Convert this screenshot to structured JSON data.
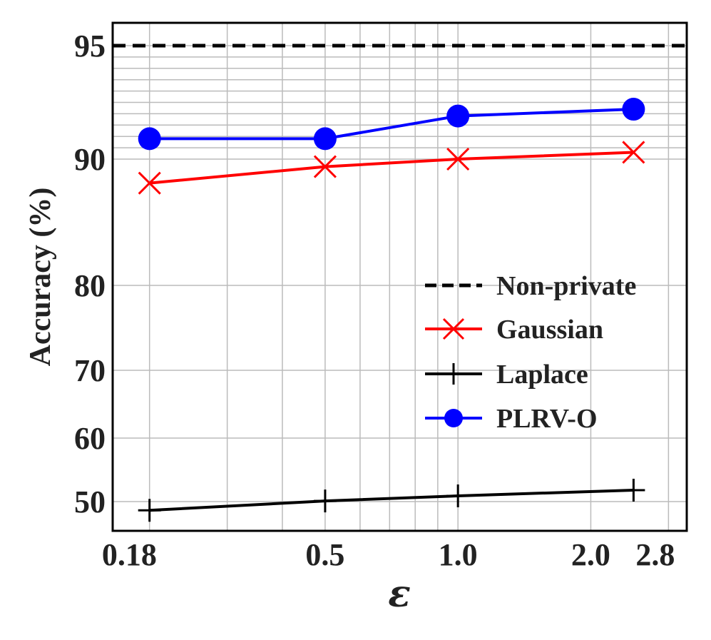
{
  "chart_data": {
    "type": "line",
    "title": "",
    "xlabel": "ε",
    "ylabel": "Accuracy (%)",
    "x_scale": "log",
    "x_ticks": [
      0.18,
      0.5,
      1.0,
      2.0,
      2.8
    ],
    "x_tick_labels": [
      "0.18",
      "0.5",
      "1.0",
      "2.0",
      "2.8"
    ],
    "y_ticks": [
      50,
      60,
      70,
      80,
      90,
      95
    ],
    "y_tick_labels": [
      "50",
      "60",
      "70",
      "80",
      "90",
      "95"
    ],
    "grid": true,
    "legend_position": "center-right",
    "series": [
      {
        "name": "Non-private",
        "x": [
          0.18,
          2.8
        ],
        "values": [
          95,
          95
        ],
        "color": "#000000",
        "style": "dashed",
        "marker": "none"
      },
      {
        "name": "Gaussian",
        "x": [
          0.2,
          0.5,
          1.0,
          2.5
        ],
        "values": [
          88.1,
          89.4,
          90.0,
          90.3
        ],
        "color": "#ff0000",
        "style": "solid",
        "marker": "x"
      },
      {
        "name": "Laplace",
        "x": [
          0.2,
          0.5,
          1.0,
          2.5
        ],
        "values": [
          49.1,
          50.1,
          50.9,
          51.8
        ],
        "color": "#000000",
        "style": "solid",
        "marker": "plus"
      },
      {
        "name": "PLRV-O",
        "x": [
          0.2,
          0.5,
          1.0,
          2.5
        ],
        "values": [
          90.9,
          90.9,
          91.9,
          92.2
        ],
        "color": "#0000ff",
        "style": "solid",
        "marker": "circle"
      }
    ]
  }
}
